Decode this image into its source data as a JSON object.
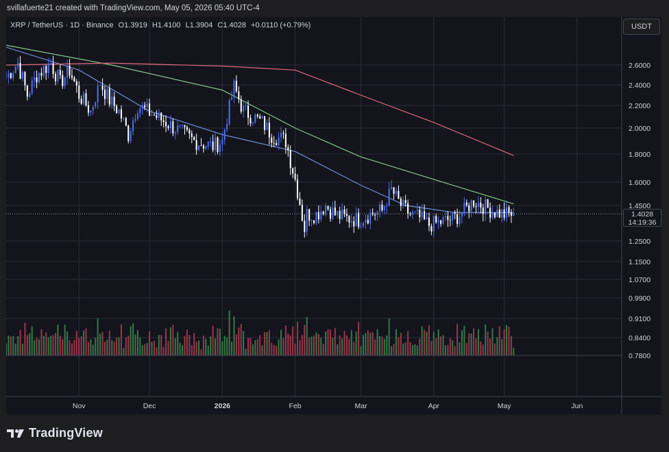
{
  "header": {
    "attribution": "svillafuerte21 created with TradingView.com, May 05, 2026 05:40 UTC-4"
  },
  "legend": {
    "symbol": "XRP / TetherUS · 1D · Binance",
    "open": "O1.3919",
    "high": "H1.4100",
    "low": "L1.3904",
    "close": "C1.4028",
    "change": "+0.0110 (+0.79%)"
  },
  "currency_button": "USDT",
  "last_price": {
    "value": "1.4028",
    "countdown": "14:19:36"
  },
  "brand": "TradingView",
  "colors": {
    "up": "#4c6ef5",
    "down": "#ffffff",
    "ma_fast": "#6f8fd8",
    "ma_mid": "#86c98a",
    "ma_slow": "#e06a7a",
    "vol_up": "#3b8a4c",
    "vol_down": "#b23b52"
  },
  "chart_data": {
    "type": "candlestick",
    "symbol": "XRP / TetherUS",
    "interval": "1D",
    "exchange": "Binance",
    "price_axis_ticks": [
      "2.6000",
      "2.4000",
      "2.2000",
      "2.0000",
      "1.8000",
      "1.6000",
      "1.4500",
      "1.2500",
      "1.1500",
      "1.0700",
      "0.9900",
      "0.9100",
      "0.8400",
      "0.7800"
    ],
    "time_axis_ticks": [
      "Nov",
      "Dec",
      "2026",
      "Feb",
      "Mar",
      "Apr",
      "May",
      "Jun"
    ],
    "time_range": [
      "2025-10-01",
      "2026-06-20"
    ],
    "last_close": 1.4028,
    "ohlc_points": [
      [
        "2025-10-01",
        2.48
      ],
      [
        "2025-10-06",
        2.62
      ],
      [
        "2025-10-10",
        2.3
      ],
      [
        "2025-10-14",
        2.5
      ],
      [
        "2025-10-20",
        2.62
      ],
      [
        "2025-10-24",
        2.42
      ],
      [
        "2025-10-28",
        2.55
      ],
      [
        "2025-11-01",
        2.3
      ],
      [
        "2025-11-06",
        2.15
      ],
      [
        "2025-11-10",
        2.42
      ],
      [
        "2025-11-14",
        2.25
      ],
      [
        "2025-11-18",
        2.15
      ],
      [
        "2025-11-22",
        1.95
      ],
      [
        "2025-11-26",
        2.2
      ],
      [
        "2025-11-30",
        2.15
      ],
      [
        "2025-12-04",
        2.1
      ],
      [
        "2025-12-08",
        2.05
      ],
      [
        "2025-12-12",
        2.0
      ],
      [
        "2025-12-16",
        1.95
      ],
      [
        "2025-12-20",
        1.9
      ],
      [
        "2025-12-24",
        1.88
      ],
      [
        "2025-12-28",
        1.86
      ],
      [
        "2026-01-01",
        1.9
      ],
      [
        "2026-01-06",
        2.38
      ],
      [
        "2026-01-10",
        2.15
      ],
      [
        "2026-01-14",
        2.1
      ],
      [
        "2026-01-18",
        2.05
      ],
      [
        "2026-01-22",
        1.95
      ],
      [
        "2026-01-28",
        1.9
      ],
      [
        "2026-02-01",
        1.62
      ],
      [
        "2026-02-05",
        1.32
      ],
      [
        "2026-02-06",
        1.4
      ],
      [
        "2026-02-10",
        1.4
      ],
      [
        "2026-02-14",
        1.45
      ],
      [
        "2026-02-18",
        1.4
      ],
      [
        "2026-02-22",
        1.38
      ],
      [
        "2026-02-28",
        1.37
      ],
      [
        "2026-03-05",
        1.4
      ],
      [
        "2026-03-10",
        1.42
      ],
      [
        "2026-03-14",
        1.55
      ],
      [
        "2026-03-18",
        1.45
      ],
      [
        "2026-03-22",
        1.4
      ],
      [
        "2026-03-26",
        1.38
      ],
      [
        "2026-03-30",
        1.34
      ],
      [
        "2026-04-05",
        1.36
      ],
      [
        "2026-04-10",
        1.38
      ],
      [
        "2026-04-14",
        1.42
      ],
      [
        "2026-04-18",
        1.48
      ],
      [
        "2026-04-22",
        1.45
      ],
      [
        "2026-04-26",
        1.42
      ],
      [
        "2026-05-01",
        1.4
      ],
      [
        "2026-05-05",
        1.4028
      ]
    ],
    "moving_averages": [
      {
        "color": "ma_fast",
        "points": [
          [
            "2025-10-01",
            2.78
          ],
          [
            "2025-11-01",
            2.55
          ],
          [
            "2025-12-01",
            2.15
          ],
          [
            "2026-01-01",
            1.95
          ],
          [
            "2026-02-01",
            1.82
          ],
          [
            "2026-03-01",
            1.58
          ],
          [
            "2026-03-20",
            1.45
          ],
          [
            "2026-04-10",
            1.41
          ],
          [
            "2026-05-05",
            1.41
          ]
        ]
      },
      {
        "color": "ma_mid",
        "points": [
          [
            "2025-10-01",
            2.8
          ],
          [
            "2025-11-15",
            2.6
          ],
          [
            "2026-01-01",
            2.35
          ],
          [
            "2026-02-01",
            2.0
          ],
          [
            "2026-03-01",
            1.78
          ],
          [
            "2026-04-01",
            1.62
          ],
          [
            "2026-05-05",
            1.46
          ]
        ]
      },
      {
        "color": "ma_slow",
        "points": [
          [
            "2025-10-01",
            2.6
          ],
          [
            "2025-11-15",
            2.62
          ],
          [
            "2026-01-01",
            2.59
          ],
          [
            "2026-02-01",
            2.55
          ],
          [
            "2026-03-01",
            2.3
          ],
          [
            "2026-04-01",
            2.05
          ],
          [
            "2026-05-05",
            1.79
          ]
        ]
      }
    ]
  }
}
